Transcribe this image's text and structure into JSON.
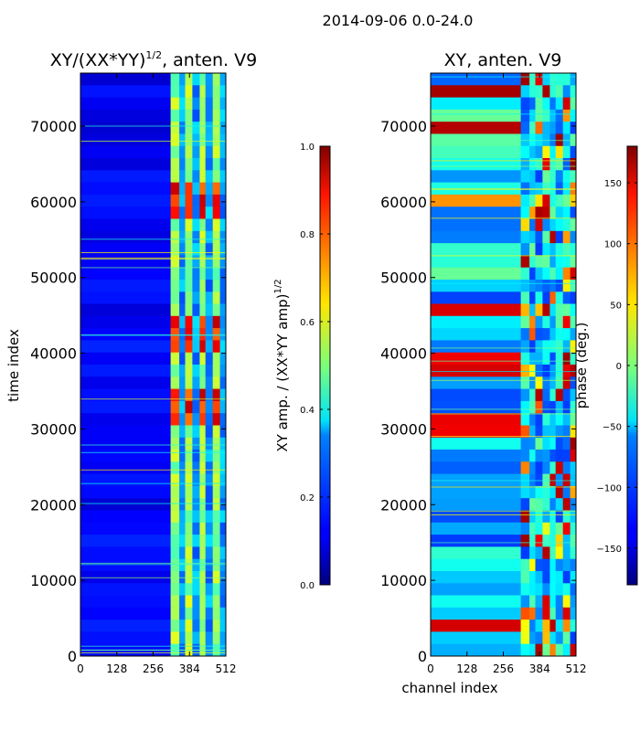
{
  "suptitle": "2014-09-06 0.0-24.0",
  "chart_data": [
    {
      "type": "heatmap",
      "title_main": "XY/(XX*YY)",
      "title_exp": "1/2",
      "title_suffix": ", anten. V9",
      "xlabel": "",
      "ylabel": "time index",
      "xlim": [
        0,
        512
      ],
      "ylim": [
        0,
        77000
      ],
      "xticks": [
        0,
        128,
        256,
        384,
        512
      ],
      "xtick_labels": [
        "0",
        "128",
        "256",
        "384",
        "512"
      ],
      "yticks": [
        0,
        10000,
        20000,
        30000,
        40000,
        50000,
        60000,
        70000
      ],
      "ytick_labels": [
        "0",
        "10000",
        "20000",
        "30000",
        "40000",
        "50000",
        "60000",
        "70000"
      ],
      "colormap": "jet",
      "colorbar": {
        "label_main": "XY amp. / (XX*YY amp)",
        "label_exp": "1/2",
        "range": [
          0.0,
          1.0
        ],
        "ticks": [
          0.0,
          0.2,
          0.4,
          0.6,
          0.8,
          1.0
        ],
        "tick_labels": [
          "0.0",
          "0.2",
          "0.4",
          "0.6",
          "0.8",
          "1.0"
        ]
      }
    },
    {
      "type": "heatmap",
      "title_main": "XY, anten. V9",
      "xlabel": "channel index",
      "ylabel": "",
      "xlim": [
        0,
        512
      ],
      "ylim": [
        0,
        77000
      ],
      "xticks": [
        0,
        128,
        256,
        384,
        512
      ],
      "xtick_labels": [
        "0",
        "128",
        "256",
        "384",
        "512"
      ],
      "yticks": [
        0,
        10000,
        20000,
        30000,
        40000,
        50000,
        60000,
        70000
      ],
      "ytick_labels": [
        "0",
        "10000",
        "20000",
        "30000",
        "40000",
        "50000",
        "60000",
        "70000"
      ],
      "colormap": "jet",
      "colorbar": {
        "label_main": "phase (deg.)",
        "range": [
          -180,
          180
        ],
        "ticks": [
          -150,
          -100,
          -50,
          0,
          50,
          100,
          150
        ],
        "tick_labels": [
          "−150",
          "−100",
          "−50",
          "0",
          "50",
          "100",
          "150"
        ]
      }
    }
  ]
}
